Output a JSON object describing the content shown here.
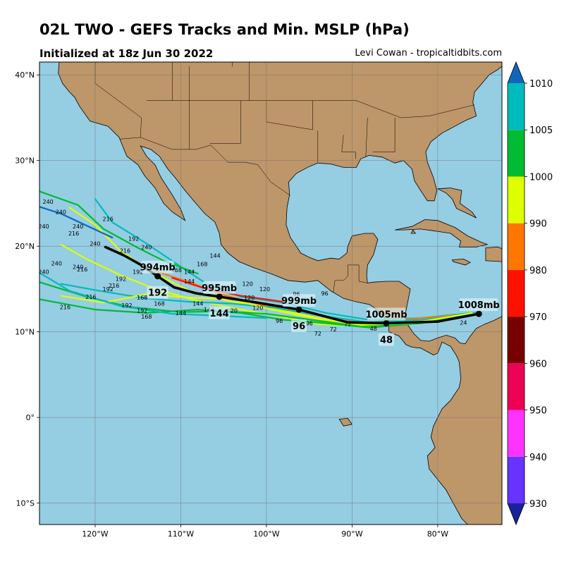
{
  "header": {
    "title": "02L TWO - GEFS Tracks and Min. MSLP (hPa)",
    "init": "Initialized at 18z Jun 30 2022",
    "credit": "Levi Cowan - tropicaltidbits.com"
  },
  "map": {
    "lon_range": [
      -126.5,
      -72.5
    ],
    "lat_range": [
      -12.5,
      41.5
    ],
    "ocean_color": "#95cde3",
    "land_color": "#bd9669",
    "lat_ticks": [
      {
        "lat": 40,
        "label": "40°N"
      },
      {
        "lat": 30,
        "label": "30°N"
      },
      {
        "lat": 20,
        "label": "20°N"
      },
      {
        "lat": 10,
        "label": "10°N"
      },
      {
        "lat": 0,
        "label": "0°"
      },
      {
        "lat": -10,
        "label": "10°S"
      }
    ],
    "lon_ticks": [
      {
        "lon": -120,
        "label": "120°W"
      },
      {
        "lon": -110,
        "label": "110°W"
      },
      {
        "lon": -100,
        "label": "100°W"
      },
      {
        "lon": -90,
        "label": "90°W"
      },
      {
        "lon": -80,
        "label": "80°W"
      }
    ]
  },
  "colorbar": {
    "levels": [
      930,
      940,
      950,
      960,
      970,
      980,
      990,
      1000,
      1005,
      1010
    ],
    "colors": [
      "#6633ff",
      "#ff33ff",
      "#ee0055",
      "#770000",
      "#ff1100",
      "#ff7700",
      "#ddff00",
      "#00bb33",
      "#00bbbb"
    ],
    "under_color": "#1a2299",
    "over_color": "#1166bb"
  },
  "mean_track": {
    "points": [
      [
        -75.2,
        12.1
      ],
      [
        -80.0,
        11.2
      ],
      [
        -86.0,
        11.0
      ],
      [
        -90.5,
        11.1
      ],
      [
        -96.2,
        12.6
      ],
      [
        -101.0,
        13.4
      ],
      [
        -105.5,
        14.1
      ],
      [
        -108.2,
        14.5
      ],
      [
        -110.8,
        15.2
      ],
      [
        -112.7,
        16.5
      ],
      [
        -114.8,
        17.9
      ],
      [
        -116.6,
        18.9
      ],
      [
        -118.8,
        19.9
      ]
    ],
    "pressure_labels": [
      {
        "lon": -75.2,
        "lat": 12.1,
        "text": "1008mb"
      },
      {
        "lon": -86.0,
        "lat": 11.0,
        "text": "1005mb"
      },
      {
        "lon": -96.2,
        "lat": 12.6,
        "text": "999mb"
      },
      {
        "lon": -105.5,
        "lat": 14.1,
        "text": "995mb"
      },
      {
        "lon": -112.7,
        "lat": 16.5,
        "text": "994mb"
      }
    ],
    "hour_labels": [
      {
        "lon": -86.0,
        "lat": 11.0,
        "text": "48"
      },
      {
        "lon": -96.2,
        "lat": 12.6,
        "text": "96"
      },
      {
        "lon": -105.5,
        "lat": 14.1,
        "text": "144"
      },
      {
        "lon": -112.7,
        "lat": 16.5,
        "text": "192"
      }
    ]
  },
  "ensemble_tracks": [
    {
      "color": "#ddff00",
      "points": [
        [
          -76,
          12
        ],
        [
          -82,
          11.3
        ],
        [
          -88,
          10.6
        ],
        [
          -94,
          10.9
        ],
        [
          -99,
          11.9
        ],
        [
          -103,
          12.6
        ],
        [
          -108,
          13.6
        ],
        [
          -113,
          15.0
        ],
        [
          -117,
          16.6
        ],
        [
          -121,
          18.5
        ],
        [
          -124,
          20.2
        ]
      ]
    },
    {
      "color": "#00bb33",
      "points": [
        [
          -76,
          12.2
        ],
        [
          -82,
          11.1
        ],
        [
          -88,
          10.7
        ],
        [
          -94,
          11.3
        ],
        [
          -100,
          12.1
        ],
        [
          -105,
          12.4
        ],
        [
          -110,
          12.3
        ],
        [
          -116,
          12.9
        ],
        [
          -121,
          14.1
        ],
        [
          -126.5,
          15.8
        ]
      ]
    },
    {
      "color": "#00bbbb",
      "points": [
        [
          -75,
          12.3
        ],
        [
          -82,
          11.6
        ],
        [
          -88,
          11.4
        ],
        [
          -93,
          12.2
        ],
        [
          -98,
          13.4
        ],
        [
          -103,
          14.1
        ],
        [
          -107,
          15.6
        ],
        [
          -110,
          17.6
        ],
        [
          -114,
          20.3
        ],
        [
          -118,
          22.8
        ],
        [
          -120,
          25.5
        ]
      ]
    },
    {
      "color": "#00bb33",
      "points": [
        [
          -76,
          11.9
        ],
        [
          -82,
          11.0
        ],
        [
          -88,
          10.5
        ],
        [
          -93,
          11.0
        ],
        [
          -98,
          11.4
        ],
        [
          -103,
          12.2
        ],
        [
          -108,
          12.6
        ],
        [
          -114,
          12.2
        ],
        [
          -120,
          12.6
        ],
        [
          -126.5,
          13.8
        ]
      ]
    },
    {
      "color": "#ddff00",
      "points": [
        [
          -76,
          12.1
        ],
        [
          -83,
          11.2
        ],
        [
          -89,
          10.9
        ],
        [
          -94,
          11.6
        ],
        [
          -99,
          12.7
        ],
        [
          -104,
          13.5
        ],
        [
          -109,
          14.8
        ],
        [
          -113,
          16.8
        ],
        [
          -117,
          19.4
        ],
        [
          -120,
          22.5
        ],
        [
          -123,
          24.5
        ]
      ]
    },
    {
      "color": "#ff7700",
      "points": [
        [
          -77,
          12
        ],
        [
          -83,
          11.5
        ],
        [
          -89,
          11.0
        ],
        [
          -95,
          12.1
        ],
        [
          -100,
          13.0
        ],
        [
          -105,
          14.3
        ],
        [
          -109,
          15.8
        ],
        [
          -113,
          17.1
        ]
      ]
    },
    {
      "color": "#ff1100",
      "points": [
        [
          -98,
          13.5
        ],
        [
          -103,
          14.2
        ],
        [
          -107,
          15.0
        ],
        [
          -111,
          16.3
        ]
      ]
    },
    {
      "color": "#00bbbb",
      "points": [
        [
          -76,
          12.0
        ],
        [
          -82,
          11.4
        ],
        [
          -88,
          11.1
        ],
        [
          -93,
          11.8
        ],
        [
          -99,
          12.8
        ],
        [
          -104,
          13.3
        ],
        [
          -109,
          13.5
        ],
        [
          -114,
          13.9
        ],
        [
          -119,
          14.7
        ],
        [
          -124,
          15.6
        ]
      ]
    },
    {
      "color": "#1166bb",
      "points": [
        [
          -118,
          21.0
        ],
        [
          -121,
          22.4
        ],
        [
          -124,
          23.8
        ],
        [
          -126.5,
          24.6
        ]
      ]
    },
    {
      "color": "#ddff00",
      "points": [
        [
          -76,
          12.2
        ],
        [
          -83,
          11.0
        ],
        [
          -89,
          10.8
        ],
        [
          -94,
          11.5
        ],
        [
          -99,
          12.5
        ],
        [
          -104,
          13.8
        ],
        [
          -109,
          14.0
        ],
        [
          -114,
          14.4
        ],
        [
          -119,
          13.4
        ],
        [
          -124,
          14.2
        ]
      ]
    },
    {
      "color": "#00bb33",
      "points": [
        [
          -108,
          16.8
        ],
        [
          -112,
          18.3
        ],
        [
          -115,
          19.8
        ],
        [
          -119,
          22.0
        ],
        [
          -122,
          24.8
        ],
        [
          -126.5,
          26.4
        ]
      ]
    },
    {
      "color": "#00bbbb",
      "points": [
        [
          -100,
          11.6
        ],
        [
          -106,
          11.9
        ],
        [
          -111,
          12.1
        ],
        [
          -117,
          13.0
        ],
        [
          -123,
          14.8
        ],
        [
          -126.5,
          16.9
        ]
      ]
    }
  ],
  "hour_marks": [
    {
      "lon": -77.0,
      "lat": 11.1,
      "text": "24"
    },
    {
      "lon": -90.5,
      "lat": 10.9,
      "text": "72"
    },
    {
      "lon": -92.2,
      "lat": 10.3,
      "text": "72"
    },
    {
      "lon": -94.0,
      "lat": 9.8,
      "text": "72"
    },
    {
      "lon": -87.5,
      "lat": 10.4,
      "text": "48"
    },
    {
      "lon": -96.5,
      "lat": 14.4,
      "text": "96"
    },
    {
      "lon": -93.2,
      "lat": 14.5,
      "text": "96"
    },
    {
      "lon": -98.5,
      "lat": 11.3,
      "text": "96"
    },
    {
      "lon": -95.0,
      "lat": 11.0,
      "text": "96"
    },
    {
      "lon": -100.2,
      "lat": 15.0,
      "text": "120"
    },
    {
      "lon": -102.2,
      "lat": 15.6,
      "text": "120"
    },
    {
      "lon": -102.0,
      "lat": 14.0,
      "text": "120"
    },
    {
      "lon": -104.0,
      "lat": 12.5,
      "text": "120"
    },
    {
      "lon": -101.0,
      "lat": 12.8,
      "text": "120"
    },
    {
      "lon": -109.0,
      "lat": 17.0,
      "text": "144"
    },
    {
      "lon": -106.0,
      "lat": 18.9,
      "text": "144"
    },
    {
      "lon": -109.0,
      "lat": 15.9,
      "text": "144"
    },
    {
      "lon": -108.0,
      "lat": 13.3,
      "text": "144"
    },
    {
      "lon": -106.7,
      "lat": 12.6,
      "text": "144"
    },
    {
      "lon": -110.0,
      "lat": 12.2,
      "text": "144"
    },
    {
      "lon": -112.5,
      "lat": 13.3,
      "text": "168"
    },
    {
      "lon": -114.5,
      "lat": 14.0,
      "text": "168"
    },
    {
      "lon": -114.0,
      "lat": 11.8,
      "text": "168"
    },
    {
      "lon": -110.5,
      "lat": 17.2,
      "text": "168"
    },
    {
      "lon": -107.5,
      "lat": 17.9,
      "text": "168"
    },
    {
      "lon": -117.0,
      "lat": 16.2,
      "text": "192"
    },
    {
      "lon": -118.5,
      "lat": 15.0,
      "text": "192"
    },
    {
      "lon": -116.3,
      "lat": 13.1,
      "text": "192"
    },
    {
      "lon": -114.5,
      "lat": 12.5,
      "text": "192"
    },
    {
      "lon": -115.5,
      "lat": 20.9,
      "text": "192"
    },
    {
      "lon": -115.0,
      "lat": 17.0,
      "text": "192"
    },
    {
      "lon": -117.8,
      "lat": 15.4,
      "text": "216"
    },
    {
      "lon": -120.5,
      "lat": 14.1,
      "text": "216"
    },
    {
      "lon": -118.5,
      "lat": 23.2,
      "text": "216"
    },
    {
      "lon": -122.5,
      "lat": 21.5,
      "text": "216"
    },
    {
      "lon": -121.5,
      "lat": 17.3,
      "text": "216"
    },
    {
      "lon": -123.5,
      "lat": 12.9,
      "text": "216"
    },
    {
      "lon": -116.5,
      "lat": 19.5,
      "text": "216"
    },
    {
      "lon": -120.0,
      "lat": 20.3,
      "text": "240"
    },
    {
      "lon": -122.0,
      "lat": 22.3,
      "text": "240"
    },
    {
      "lon": -124.0,
      "lat": 24.0,
      "text": "240"
    },
    {
      "lon": -125.5,
      "lat": 25.2,
      "text": "240"
    },
    {
      "lon": -126.0,
      "lat": 22.3,
      "text": "240"
    },
    {
      "lon": -124.5,
      "lat": 18.0,
      "text": "240"
    },
    {
      "lon": -122.0,
      "lat": 17.6,
      "text": "240"
    },
    {
      "lon": -126.0,
      "lat": 17.0,
      "text": "240"
    },
    {
      "lon": -114.0,
      "lat": 19.9,
      "text": "240"
    }
  ]
}
